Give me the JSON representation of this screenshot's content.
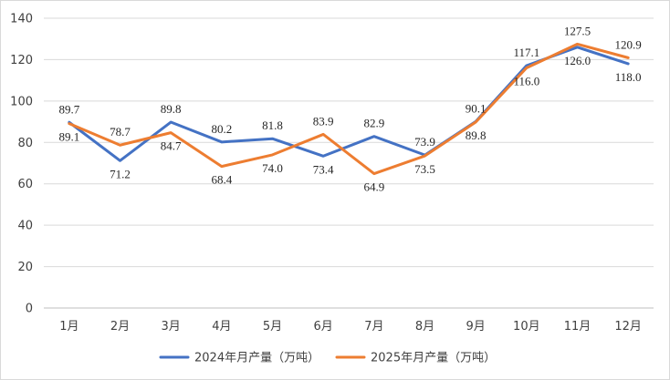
{
  "chart_data": {
    "type": "line",
    "title": "",
    "xlabel": "",
    "ylabel": "",
    "categories": [
      "1月",
      "2月",
      "3月",
      "4月",
      "5月",
      "6月",
      "7月",
      "8月",
      "9月",
      "10月",
      "11月",
      "12月"
    ],
    "ylim": [
      0,
      140
    ],
    "yticks": [
      0,
      20,
      40,
      60,
      80,
      100,
      120,
      140
    ],
    "ytick_labels": [
      "0",
      "20",
      "40",
      "60",
      "80",
      "100",
      "120",
      "140"
    ],
    "grid": true,
    "legend_position": "bottom-center",
    "series": [
      {
        "name": "2024年月产量（万吨）",
        "color": "#4472C4",
        "values": [
          89.7,
          71.2,
          89.8,
          80.2,
          81.8,
          73.4,
          82.9,
          73.9,
          90.1,
          117.1,
          126.0,
          118.0
        ],
        "labels": [
          "89.7",
          "71.2",
          "89.8",
          "80.2",
          "81.8",
          "73.4",
          "82.9",
          "73.9",
          "90.1",
          "117.1",
          "126.0",
          "118.0"
        ],
        "label_side": [
          "above",
          "below",
          "above",
          "above",
          "above",
          "below",
          "above",
          "above",
          "above",
          "above",
          "below",
          "below"
        ]
      },
      {
        "name": "2025年月产量（万吨）",
        "color": "#ED7D31",
        "values": [
          89.1,
          78.7,
          84.7,
          68.4,
          74.0,
          83.9,
          64.9,
          73.5,
          89.8,
          116.0,
          127.5,
          120.9
        ],
        "labels": [
          "89.1",
          "78.7",
          "84.7",
          "68.4",
          "74.0",
          "83.9",
          "64.9",
          "73.5",
          "89.8",
          "116.0",
          "127.5",
          "120.9"
        ],
        "label_side": [
          "below",
          "above",
          "below",
          "below",
          "below",
          "above",
          "below",
          "below",
          "below",
          "below",
          "above",
          "above"
        ]
      }
    ]
  }
}
